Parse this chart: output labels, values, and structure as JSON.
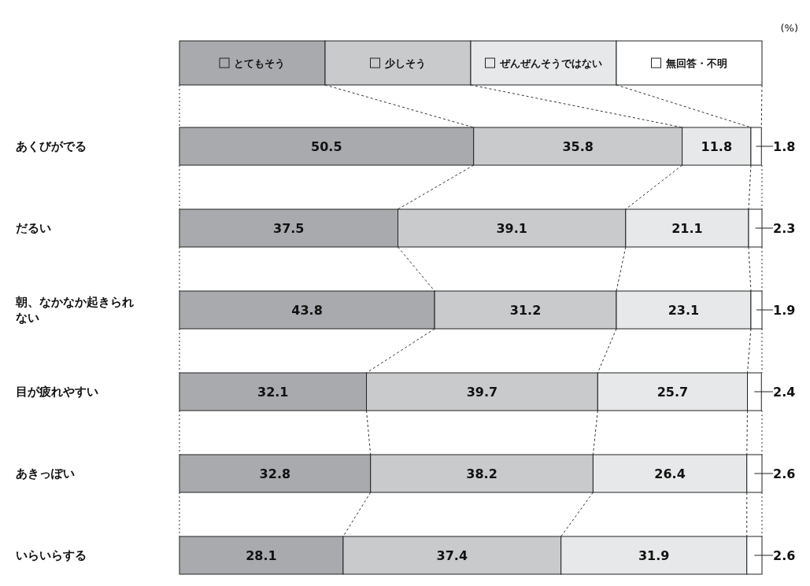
{
  "chart_data": {
    "type": "bar",
    "orientation": "horizontal",
    "stacked": true,
    "data_labels": true,
    "legend": "top",
    "xlim": [
      0,
      100
    ],
    "tick_labels": false,
    "annotations": [
      "(%)"
    ],
    "categories": [
      "あくびがでる",
      "だるい",
      "朝、なかなか起きられない",
      "目が疲れやすい",
      "あきっぽい",
      "いらいらする"
    ],
    "series": [
      {
        "name": "とてもそう",
        "color": "#a9aaad",
        "values": [
          50.5,
          37.5,
          43.8,
          32.1,
          32.8,
          28.1
        ]
      },
      {
        "name": "少しそう",
        "color": "#c9cacc",
        "values": [
          35.8,
          39.1,
          31.2,
          39.7,
          38.2,
          37.4
        ]
      },
      {
        "name": "ぜんぜんそうではない",
        "color": "#e7e8e9",
        "values": [
          11.8,
          21.1,
          23.1,
          25.7,
          26.4,
          31.9
        ]
      },
      {
        "name": "無回答・不明",
        "color": "#ffffff",
        "values": [
          1.8,
          2.3,
          1.9,
          2.4,
          2.6,
          2.6
        ]
      }
    ]
  }
}
